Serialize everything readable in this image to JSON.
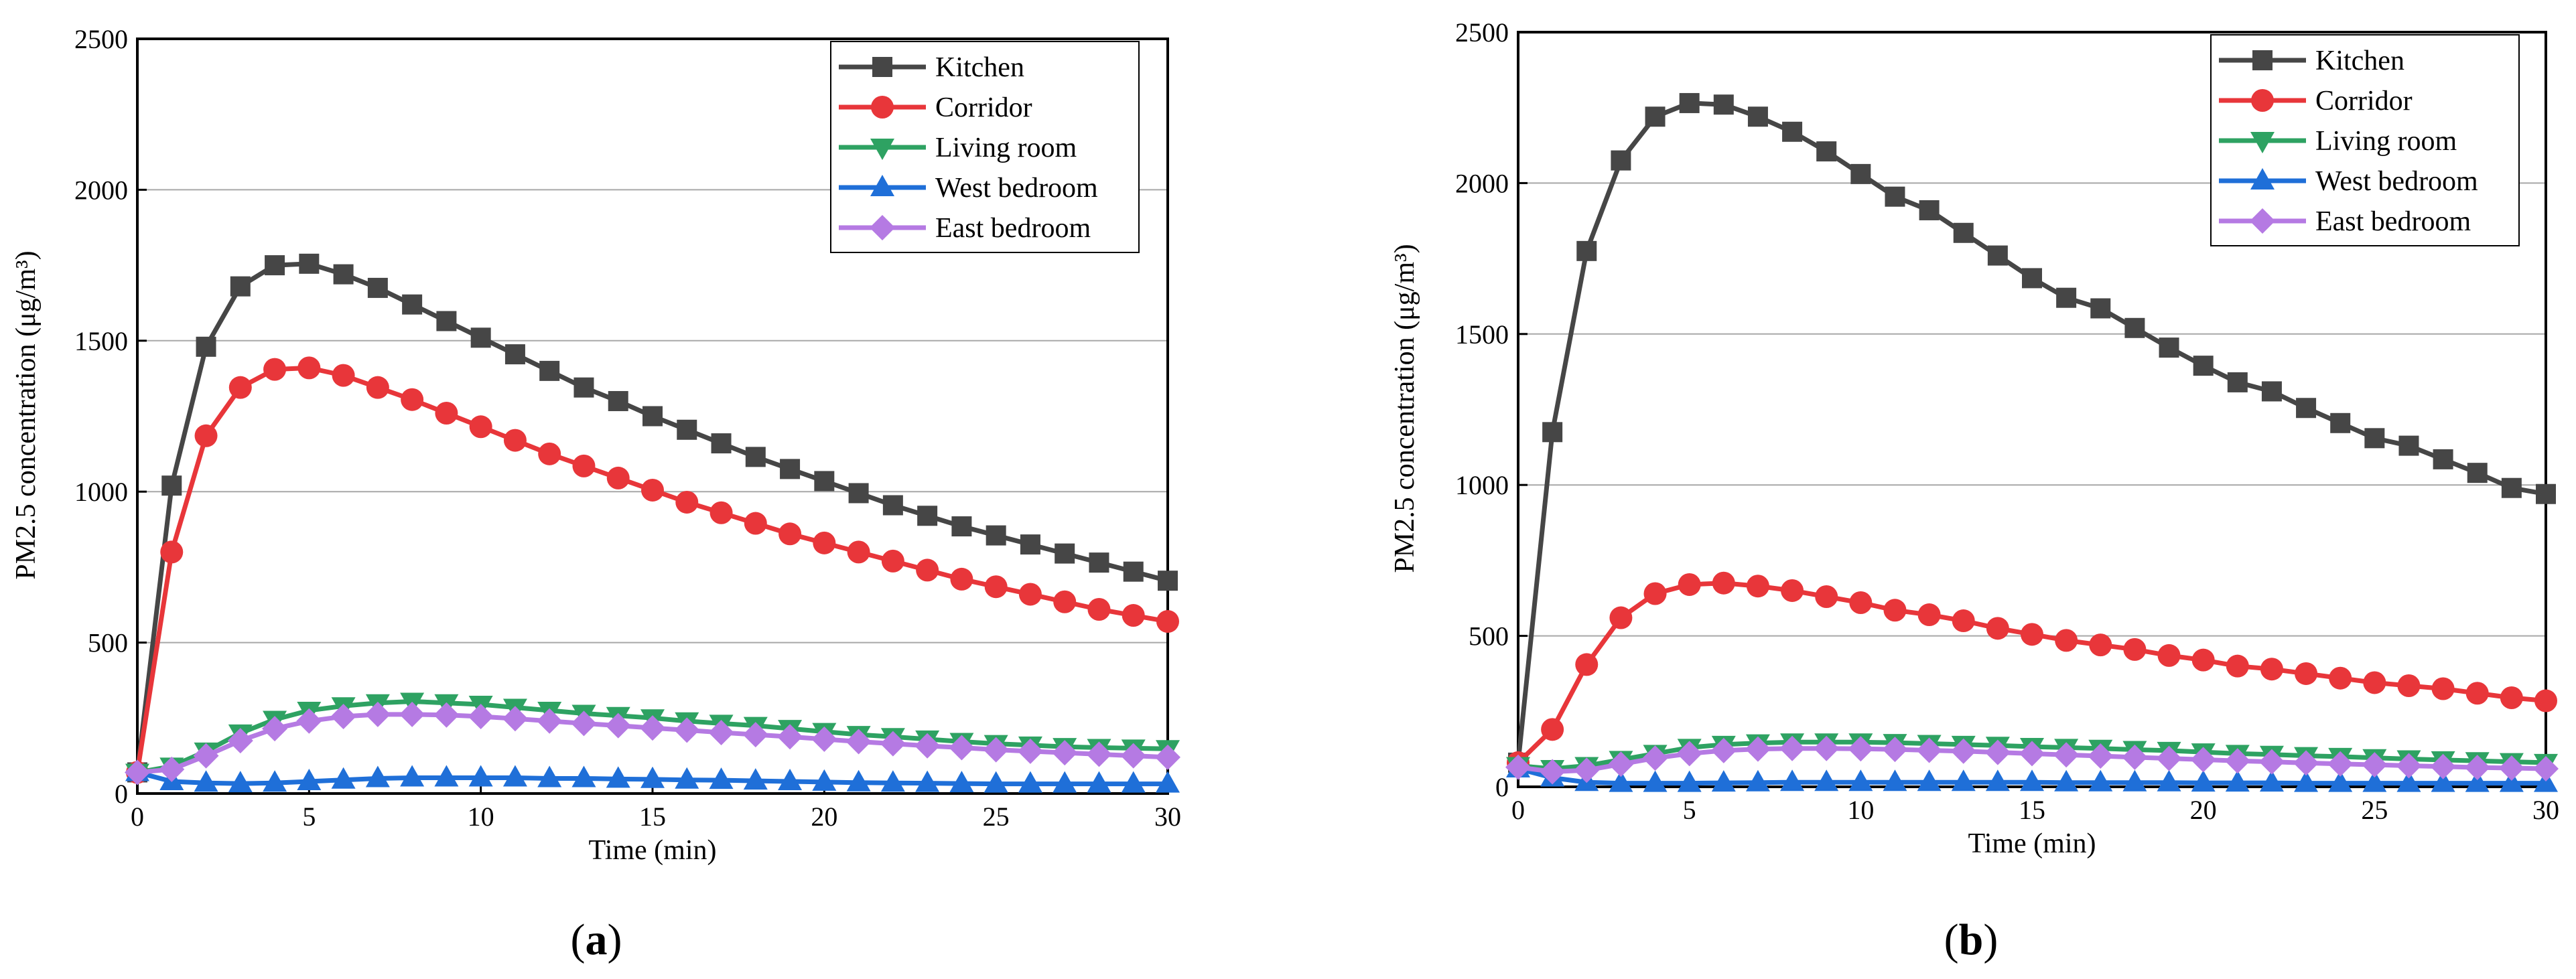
{
  "colors": {
    "Kitchen": "#464646",
    "Corridor": "#e8363a",
    "Living room": "#2ea262",
    "West bedroom": "#1f6fd8",
    "East bedroom": "#b57ae3",
    "grid": "#a8a8a8",
    "axis": "#000000"
  },
  "markers": {
    "Kitchen": "square",
    "Corridor": "circle",
    "Living room": "triangle-down",
    "West bedroom": "triangle-up",
    "East bedroom": "diamond"
  },
  "chart_data": [
    {
      "id": "a",
      "type": "line",
      "caption": "(a)",
      "xlabel": "Time (min)",
      "ylabel": "PM2.5 concentration (μg/m³)",
      "xlim": [
        0,
        30
      ],
      "ylim": [
        0,
        2500
      ],
      "xticks": [
        0,
        5,
        10,
        15,
        20,
        25,
        30
      ],
      "yticks": [
        0,
        500,
        1000,
        1500,
        2000,
        2500
      ],
      "legend_position": "top-right",
      "x": [
        0,
        1,
        2,
        3,
        4,
        5,
        6,
        7,
        8,
        9,
        10,
        11,
        12,
        13,
        14,
        15,
        16,
        17,
        18,
        19,
        20,
        21,
        22,
        23,
        24,
        25,
        26,
        27,
        28,
        29,
        30
      ],
      "series": [
        {
          "name": "Kitchen",
          "values": [
            70,
            1020,
            1480,
            1680,
            1750,
            1755,
            1720,
            1675,
            1620,
            1565,
            1510,
            1455,
            1400,
            1345,
            1300,
            1250,
            1205,
            1160,
            1115,
            1075,
            1035,
            995,
            955,
            920,
            885,
            855,
            825,
            795,
            765,
            735,
            705
          ]
        },
        {
          "name": "Corridor",
          "values": [
            70,
            800,
            1185,
            1345,
            1405,
            1410,
            1385,
            1345,
            1305,
            1260,
            1215,
            1170,
            1125,
            1085,
            1045,
            1005,
            965,
            930,
            895,
            860,
            830,
            800,
            770,
            740,
            710,
            685,
            660,
            635,
            610,
            590,
            570
          ]
        },
        {
          "name": "Living room",
          "values": [
            70,
            90,
            140,
            200,
            245,
            275,
            290,
            300,
            305,
            300,
            295,
            285,
            275,
            265,
            258,
            250,
            240,
            232,
            225,
            215,
            205,
            195,
            188,
            180,
            172,
            165,
            160,
            155,
            152,
            150,
            148
          ]
        },
        {
          "name": "West bedroom",
          "values": [
            70,
            40,
            35,
            33,
            35,
            40,
            45,
            50,
            52,
            52,
            52,
            52,
            50,
            50,
            48,
            47,
            45,
            44,
            42,
            40,
            38,
            36,
            35,
            34,
            33,
            32,
            32,
            32,
            32,
            32,
            32
          ]
        },
        {
          "name": "East bedroom",
          "values": [
            70,
            80,
            125,
            175,
            215,
            240,
            255,
            262,
            262,
            260,
            255,
            248,
            240,
            232,
            225,
            217,
            210,
            202,
            195,
            188,
            180,
            172,
            165,
            158,
            152,
            145,
            140,
            135,
            130,
            125,
            120
          ]
        }
      ]
    },
    {
      "id": "b",
      "type": "line",
      "caption": "(b)",
      "xlabel": "Time (min)",
      "ylabel": "PM2.5 concentration (μg/m³)",
      "xlim": [
        0,
        30
      ],
      "ylim": [
        0,
        2500
      ],
      "xticks": [
        0,
        5,
        10,
        15,
        20,
        25,
        30
      ],
      "yticks": [
        0,
        500,
        1000,
        1500,
        2000,
        2500
      ],
      "legend_position": "top-right",
      "x": [
        0,
        1,
        2,
        3,
        4,
        5,
        6,
        7,
        8,
        9,
        10,
        11,
        12,
        13,
        14,
        15,
        16,
        17,
        18,
        19,
        20,
        21,
        22,
        23,
        24,
        25,
        26,
        27,
        28,
        29,
        30
      ],
      "series": [
        {
          "name": "Kitchen",
          "values": [
            80,
            1175,
            1775,
            2075,
            2220,
            2265,
            2260,
            2220,
            2170,
            2105,
            2030,
            1955,
            1910,
            1835,
            1760,
            1685,
            1620,
            1585,
            1520,
            1455,
            1395,
            1340,
            1310,
            1255,
            1205,
            1155,
            1130,
            1085,
            1040,
            990,
            970
          ]
        },
        {
          "name": "Corridor",
          "values": [
            80,
            190,
            405,
            560,
            640,
            670,
            675,
            665,
            650,
            630,
            610,
            585,
            570,
            550,
            525,
            505,
            485,
            470,
            455,
            435,
            420,
            400,
            390,
            375,
            360,
            345,
            335,
            325,
            310,
            295,
            285
          ]
        },
        {
          "name": "Living room",
          "values": [
            70,
            60,
            70,
            90,
            110,
            130,
            140,
            145,
            148,
            148,
            148,
            146,
            143,
            140,
            137,
            133,
            130,
            127,
            123,
            120,
            115,
            110,
            107,
            103,
            100,
            96,
            92,
            89,
            86,
            83,
            80
          ]
        },
        {
          "name": "West bedroom",
          "values": [
            60,
            30,
            15,
            12,
            12,
            12,
            13,
            14,
            15,
            15,
            15,
            15,
            15,
            15,
            15,
            15,
            14,
            14,
            14,
            14,
            13,
            13,
            13,
            12,
            12,
            12,
            12,
            12,
            12,
            12,
            12
          ]
        },
        {
          "name": "East bedroom",
          "values": [
            65,
            50,
            55,
            75,
            95,
            110,
            120,
            125,
            127,
            127,
            126,
            124,
            121,
            118,
            114,
            110,
            106,
            102,
            98,
            94,
            90,
            86,
            83,
            79,
            76,
            73,
            70,
            67,
            64,
            62,
            60
          ]
        }
      ]
    }
  ]
}
